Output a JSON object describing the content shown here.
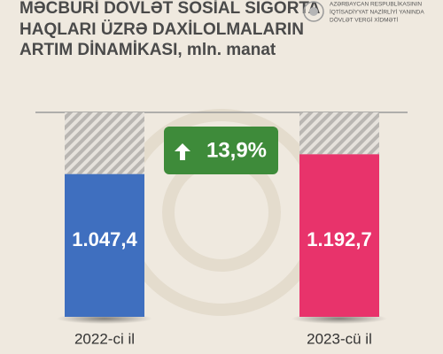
{
  "chart_data": {
    "type": "bar",
    "title": [
      "MƏCBURİ DÖVLƏT SOSİAL SIGORTA",
      "HAQLARI ÜZRƏ DAXİLOLMALARIN",
      "ARTIM DİNAMİKASI, mln. manat"
    ],
    "logo_text": [
      "AZƏRBAYCAN RESPUBLİKASININ",
      "İQTİSADİYYAT NAZİRLİYİ YANINDA",
      "DÖVLƏT VERGİ XİDMƏTİ"
    ],
    "categories": [
      "2022-ci il",
      "2023-cü il"
    ],
    "values": [
      1047.4,
      1192.7
    ],
    "value_labels": [
      "1.047,4",
      "1.192,7"
    ],
    "colors": [
      "#3f6fbf",
      "#e8336b"
    ],
    "annotation": "13,9%",
    "ylim": [
      0,
      1500
    ]
  }
}
